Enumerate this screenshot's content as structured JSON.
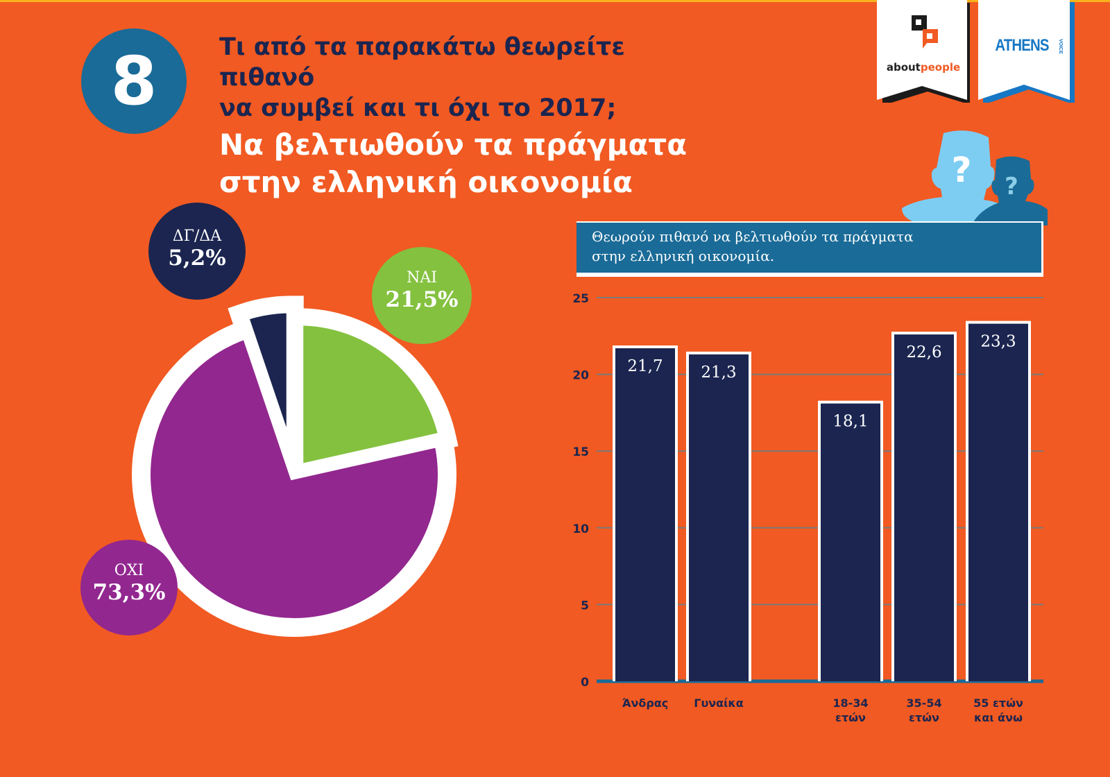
{
  "header": {
    "question_number": "8",
    "question_line1": "Τι από τα παρακάτω θεωρείτε πιθανό",
    "question_line2": "να συμβεί και τι όχι το 2017;",
    "subtitle_line1": "Να βελτιωθούν τα πράγματα",
    "subtitle_line2": "στην ελληνική οικονομία"
  },
  "logos": {
    "aboutpeople_part1": "about",
    "aboutpeople_part2": "people",
    "athens": "ATHENS",
    "voice": "VOICE"
  },
  "colors": {
    "background": "#f15a22",
    "navy": "#1b2550",
    "teal_blue": "#1a6b97",
    "green": "#84c13f",
    "purple": "#92278f",
    "light_blue": "#7dcdf3"
  },
  "chart_data": [
    {
      "type": "pie",
      "title": "Να βελτιωθούν τα πράγματα στην ελληνική οικονομία",
      "slices": [
        {
          "label": "ΝΑΙ",
          "value": 21.5,
          "display": "21,5%",
          "color": "#84c13f"
        },
        {
          "label": "ΟΧΙ",
          "value": 73.3,
          "display": "73,3%",
          "color": "#92278f"
        },
        {
          "label": "ΔΓ/ΔΑ",
          "value": 5.2,
          "display": "5,2%",
          "color": "#1b2550",
          "exploded": true
        }
      ]
    },
    {
      "type": "bar",
      "title_line1": "Θεωρούν πιθανό να βελτιωθούν τα πράγματα",
      "title_line2": "στην ελληνική οικονομία.",
      "categories": [
        {
          "line1": "Άνδρας",
          "line2": "",
          "group": 0
        },
        {
          "line1": "Γυναίκα",
          "line2": "",
          "group": 0
        },
        {
          "line1": "18-34",
          "line2": "ετών",
          "group": 1
        },
        {
          "line1": "35-54",
          "line2": "ετών",
          "group": 1
        },
        {
          "line1": "55 ετών",
          "line2": "και άνω",
          "group": 1
        }
      ],
      "values": [
        21.7,
        21.3,
        18.1,
        22.6,
        23.3
      ],
      "value_labels": [
        "21,7",
        "21,3",
        "18,1",
        "22,6",
        "23,3"
      ],
      "ylim": [
        0,
        25
      ],
      "yticks": [
        0,
        5,
        10,
        15,
        20,
        25
      ],
      "grid": true,
      "xlabel": "",
      "ylabel": ""
    }
  ]
}
